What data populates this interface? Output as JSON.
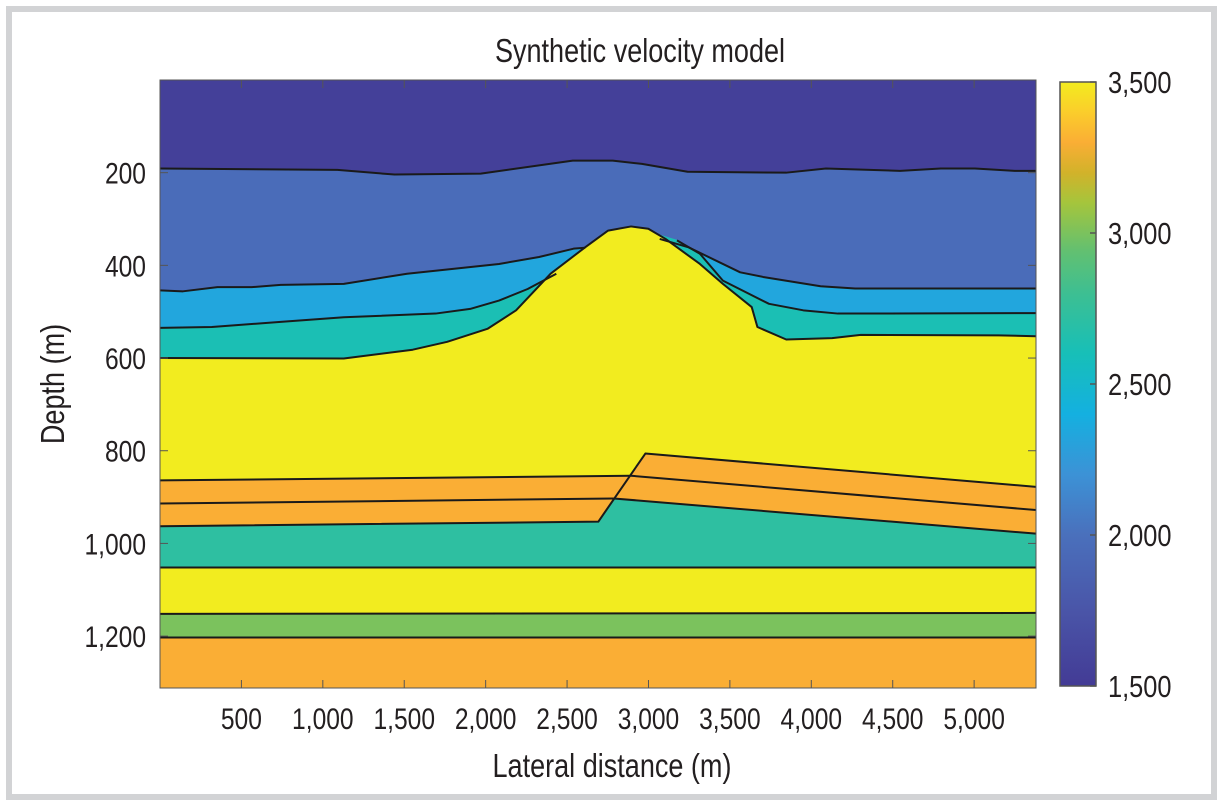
{
  "chart_data": {
    "type": "heatmap",
    "title": "Synthetic velocity model",
    "xlabel": "Lateral distance (m)",
    "ylabel": "Depth (m)",
    "xlim": [
      0,
      5380
    ],
    "ylim": [
      0,
      1312
    ],
    "y_reversed": true,
    "xticks": [
      500,
      1000,
      1500,
      2000,
      2500,
      3000,
      3500,
      4000,
      4500,
      5000
    ],
    "xtick_labels": [
      "500",
      "1,000",
      "1,500",
      "2,000",
      "2,500",
      "3,000",
      "3,500",
      "4,000",
      "4,500",
      "5,000"
    ],
    "yticks": [
      200,
      400,
      600,
      800,
      1000,
      1200
    ],
    "ytick_labels": [
      "200",
      "400",
      "600",
      "800",
      "1,000",
      "1,200"
    ],
    "colorbar": {
      "range": [
        1500,
        3500
      ],
      "ticks": [
        1500,
        2000,
        2500,
        3000,
        3500
      ],
      "tick_labels": [
        "1,500",
        "2,000",
        "2,500",
        "3,000",
        "3,500"
      ],
      "colormap": [
        "#433b95",
        "#4a55a8",
        "#4a70bc",
        "#3c92d6",
        "#14b0e0",
        "#17bfb8",
        "#3dbf92",
        "#62c071",
        "#a5c53c",
        "#d2b22a",
        "#faae35",
        "#fbcd2b",
        "#f2ec1f"
      ],
      "colormap_positions": [
        0,
        0.125,
        0.25,
        0.35,
        0.45,
        0.55,
        0.65,
        0.72,
        0.8,
        0.85,
        0.9,
        0.95,
        1
      ]
    },
    "layers": [
      {
        "velocity": 1550,
        "polygon": [
          [
            0,
            0
          ],
          [
            5380,
            0
          ],
          [
            5380,
            1312
          ],
          [
            0,
            1312
          ]
        ]
      },
      {
        "velocity": 1960,
        "polygon": [
          [
            0,
            191
          ],
          [
            1090,
            194
          ],
          [
            1440,
            204
          ],
          [
            1970,
            202
          ],
          [
            2535,
            174
          ],
          [
            2780,
            174
          ],
          [
            2960,
            181
          ],
          [
            3240,
            198
          ],
          [
            3845,
            200
          ],
          [
            4090,
            191
          ],
          [
            4545,
            196
          ],
          [
            4795,
            191
          ],
          [
            5005,
            191
          ],
          [
            5250,
            196
          ],
          [
            5380,
            196
          ],
          [
            5380,
            1312
          ],
          [
            0,
            1312
          ]
        ]
      },
      {
        "velocity": 2330,
        "polygon": [
          [
            0,
            454
          ],
          [
            141,
            456
          ],
          [
            353,
            447
          ],
          [
            564,
            447
          ],
          [
            741,
            442
          ],
          [
            1129,
            440
          ],
          [
            1517,
            418
          ],
          [
            2082,
            397
          ],
          [
            2328,
            382
          ],
          [
            2540,
            364
          ],
          [
            2611,
            362
          ],
          [
            2893,
            316
          ],
          [
            3069,
            343
          ],
          [
            3246,
            361
          ],
          [
            3563,
            415
          ],
          [
            3704,
            425
          ],
          [
            4057,
            445
          ],
          [
            4269,
            450
          ],
          [
            5380,
            450
          ],
          [
            5380,
            1312
          ],
          [
            0,
            1312
          ]
        ]
      },
      {
        "velocity": 2620,
        "polygon": [
          [
            0,
            535
          ],
          [
            318,
            533
          ],
          [
            741,
            522
          ],
          [
            1129,
            512
          ],
          [
            1693,
            504
          ],
          [
            1905,
            494
          ],
          [
            2082,
            476
          ],
          [
            2258,
            451
          ],
          [
            2434,
            418
          ],
          [
            2893,
            316
          ],
          [
            3175,
            346
          ],
          [
            3316,
            375
          ],
          [
            3457,
            433
          ],
          [
            3740,
            483
          ],
          [
            3951,
            497
          ],
          [
            4163,
            504
          ],
          [
            5380,
            503
          ],
          [
            5380,
            1312
          ],
          [
            0,
            1312
          ]
        ]
      },
      {
        "velocity": 3500,
        "polygon": [
          [
            0,
            600
          ],
          [
            1129,
            601
          ],
          [
            1552,
            582
          ],
          [
            1764,
            565
          ],
          [
            2011,
            537
          ],
          [
            2187,
            497
          ],
          [
            2399,
            418
          ],
          [
            2611,
            361
          ],
          [
            2752,
            325
          ],
          [
            2893,
            316
          ],
          [
            2999,
            321
          ],
          [
            3105,
            343
          ],
          [
            3316,
            397
          ],
          [
            3457,
            440
          ],
          [
            3634,
            490
          ],
          [
            3669,
            533
          ],
          [
            3846,
            560
          ],
          [
            4128,
            557
          ],
          [
            4304,
            550
          ],
          [
            5151,
            551
          ],
          [
            5380,
            553
          ],
          [
            5380,
            1312
          ],
          [
            0,
            1312
          ]
        ]
      },
      {
        "velocity": 2720,
        "polygon": [
          [
            0,
            963
          ],
          [
            2692,
            953
          ],
          [
            2787,
            903
          ],
          [
            5380,
            979
          ],
          [
            5380,
            1052
          ],
          [
            0,
            1052
          ]
        ]
      },
      {
        "velocity": 3300,
        "polygon": [
          [
            0,
            864
          ],
          [
            2893,
            854
          ],
          [
            2981,
            806
          ],
          [
            5380,
            878
          ],
          [
            5380,
            979
          ],
          [
            2787,
            903
          ],
          [
            2692,
            953
          ],
          [
            0,
            963
          ]
        ]
      },
      {
        "velocity": 3500,
        "polygon": [
          [
            0,
            1052
          ],
          [
            5380,
            1052
          ],
          [
            5380,
            1152
          ],
          [
            0,
            1152
          ]
        ]
      },
      {
        "velocity": 3000,
        "polygon": [
          [
            0,
            1152
          ],
          [
            5380,
            1152
          ],
          [
            5380,
            1203
          ],
          [
            0,
            1203
          ]
        ]
      },
      {
        "velocity": 3300,
        "polygon": [
          [
            0,
            1203
          ],
          [
            5380,
            1203
          ],
          [
            5380,
            1312
          ],
          [
            0,
            1312
          ]
        ]
      }
    ],
    "horizons": [
      [
        [
          0,
          191
        ],
        [
          1090,
          194
        ],
        [
          1440,
          204
        ],
        [
          1970,
          202
        ],
        [
          2535,
          174
        ],
        [
          2780,
          174
        ],
        [
          2960,
          181
        ],
        [
          3240,
          198
        ],
        [
          3845,
          200
        ],
        [
          4090,
          191
        ],
        [
          4545,
          196
        ],
        [
          4795,
          191
        ],
        [
          5005,
          191
        ],
        [
          5250,
          196
        ],
        [
          5380,
          196
        ]
      ],
      [
        [
          0,
          454
        ],
        [
          141,
          456
        ],
        [
          353,
          447
        ],
        [
          564,
          447
        ],
        [
          741,
          442
        ],
        [
          1129,
          440
        ],
        [
          1517,
          418
        ],
        [
          2082,
          397
        ],
        [
          2328,
          382
        ],
        [
          2540,
          364
        ],
        [
          2611,
          362
        ]
      ],
      [
        [
          3069,
          343
        ],
        [
          3246,
          361
        ],
        [
          3563,
          415
        ],
        [
          3704,
          425
        ],
        [
          4057,
          445
        ],
        [
          4269,
          450
        ],
        [
          5380,
          450
        ]
      ],
      [
        [
          0,
          535
        ],
        [
          318,
          533
        ],
        [
          741,
          522
        ],
        [
          1129,
          512
        ],
        [
          1693,
          504
        ],
        [
          1905,
          494
        ],
        [
          2082,
          476
        ],
        [
          2258,
          451
        ],
        [
          2434,
          418
        ]
      ],
      [
        [
          3175,
          346
        ],
        [
          3316,
          375
        ],
        [
          3457,
          433
        ],
        [
          3740,
          483
        ],
        [
          3951,
          497
        ],
        [
          4163,
          504
        ],
        [
          5380,
          503
        ]
      ],
      [
        [
          0,
          600
        ],
        [
          1129,
          601
        ],
        [
          1552,
          582
        ],
        [
          1764,
          565
        ],
        [
          2011,
          537
        ],
        [
          2187,
          497
        ],
        [
          2399,
          418
        ],
        [
          2611,
          361
        ],
        [
          2752,
          325
        ],
        [
          2893,
          316
        ],
        [
          2999,
          321
        ],
        [
          3105,
          343
        ],
        [
          3316,
          397
        ],
        [
          3457,
          440
        ],
        [
          3634,
          490
        ],
        [
          3669,
          533
        ],
        [
          3846,
          560
        ],
        [
          4128,
          557
        ],
        [
          4304,
          550
        ],
        [
          5151,
          551
        ],
        [
          5380,
          553
        ]
      ],
      [
        [
          0,
          864
        ],
        [
          2893,
          854
        ]
      ],
      [
        [
          0,
          914
        ],
        [
          2787,
          903
        ]
      ],
      [
        [
          0,
          963
        ],
        [
          2692,
          953
        ],
        [
          2981,
          806
        ],
        [
          5380,
          878
        ]
      ],
      [
        [
          2893,
          854
        ],
        [
          5380,
          928
        ]
      ],
      [
        [
          2787,
          903
        ],
        [
          5380,
          979
        ]
      ],
      [
        [
          0,
          1052
        ],
        [
          5380,
          1052
        ]
      ],
      [
        [
          0,
          1152
        ],
        [
          5380,
          1150
        ]
      ],
      [
        [
          0,
          1203
        ],
        [
          5380,
          1203
        ]
      ]
    ]
  }
}
